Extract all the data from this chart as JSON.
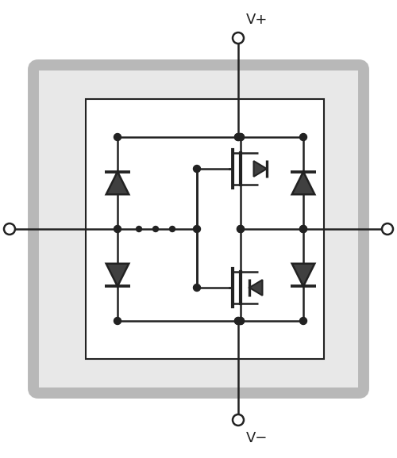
{
  "bg_color": "#ffffff",
  "line_color": "#222222",
  "gray_color": "#b8b8b8",
  "gray_fill": "#e8e8e8",
  "dot_color": "#222222",
  "diode_fill": "#404040",
  "figsize": [
    5.0,
    5.78
  ],
  "dpi": 100,
  "title_vplus": "V+",
  "title_vminus": "V−",
  "lw": 1.8,
  "lw_thick": 3.0,
  "lw_gray": 10.0
}
